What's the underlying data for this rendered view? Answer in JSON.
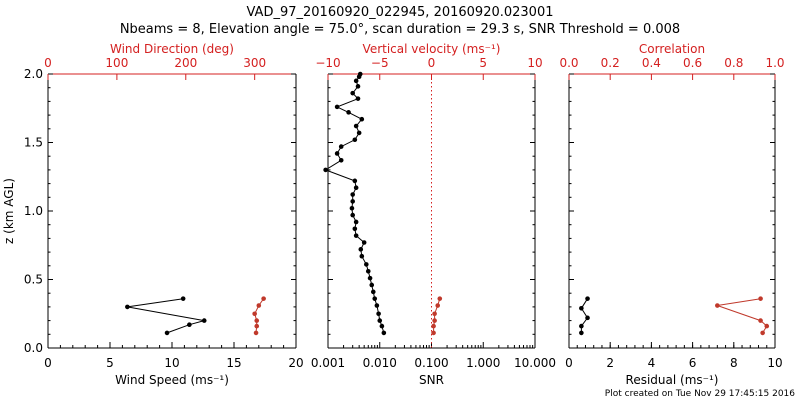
{
  "title_line1": "VAD_97_20160920_022945, 20160920.023001",
  "title_line2": "Nbeams = 8, Elevation angle = 75.0°, scan duration = 29.3 s, SNR Threshold = 0.008",
  "footer": "Plot created on Tue Nov 29 17:45:15 2016",
  "colors": {
    "black": "#000000",
    "red": "#d42020",
    "dark_red": "#c0392b"
  },
  "chart_data": [
    {
      "type": "line",
      "panel": "wind",
      "ylabel": "z (km AGL)",
      "ylim": [
        0,
        2.0
      ],
      "y_ticks": [
        "0.0",
        "0.5",
        "1.0",
        "1.5",
        "2.0"
      ],
      "xlabel": "Wind Speed (ms⁻¹)",
      "xlim": [
        0,
        20
      ],
      "x_ticks": [
        "0",
        "5",
        "10",
        "15",
        "20"
      ],
      "top_xlabel": "Wind Direction (deg)",
      "top_xlim": [
        0,
        360
      ],
      "top_x_ticks": [
        "0",
        "100",
        "200",
        "300"
      ],
      "series": [
        {
          "color": "#000000",
          "x": [
            9.6,
            11.4,
            12.6,
            6.4,
            10.9
          ],
          "y": [
            0.11,
            0.17,
            0.2,
            0.3,
            0.36
          ]
        },
        {
          "color": "#c0392b",
          "axis": "top",
          "x": [
            302,
            303,
            303,
            300,
            306,
            313
          ],
          "y": [
            0.11,
            0.16,
            0.2,
            0.25,
            0.31,
            0.36
          ]
        }
      ]
    },
    {
      "type": "line",
      "panel": "snr",
      "xlabel": "SNR",
      "xscale": "log",
      "xlim": [
        0.001,
        10
      ],
      "x_ticks": [
        "0.001",
        "0.010",
        "0.100",
        "1.000",
        "10.000"
      ],
      "top_xlabel": "Vertical velocity (ms⁻¹)",
      "top_xlim": [
        -10,
        10
      ],
      "top_x_ticks": [
        "−10",
        "−5",
        "0",
        "5",
        "10"
      ],
      "series": [
        {
          "color": "#000000",
          "x": [
            0.012,
            0.011,
            0.01,
            0.0095,
            0.0088,
            0.008,
            0.0075,
            0.007,
            0.0065,
            0.006,
            0.0055,
            0.0045,
            0.0043,
            0.005,
            0.0035,
            0.0033,
            0.0035,
            0.003,
            0.0029,
            0.003,
            0.003,
            0.0035,
            0.0033,
            0.0009,
            0.0018,
            0.0015,
            0.0018,
            0.0033,
            0.004,
            0.0035,
            0.0045,
            0.0025,
            0.0015,
            0.0038,
            0.003,
            0.0038,
            0.0035,
            0.004,
            0.0042
          ],
          "y": [
            0.11,
            0.16,
            0.2,
            0.25,
            0.31,
            0.36,
            0.41,
            0.46,
            0.51,
            0.56,
            0.61,
            0.67,
            0.72,
            0.77,
            0.82,
            0.87,
            0.92,
            0.97,
            1.02,
            1.07,
            1.12,
            1.17,
            1.22,
            1.3,
            1.37,
            1.42,
            1.47,
            1.52,
            1.57,
            1.62,
            1.67,
            1.72,
            1.76,
            1.82,
            1.86,
            1.91,
            1.95,
            1.98,
            2.0
          ]
        },
        {
          "color": "#c0392b",
          "axis": "top",
          "x": [
            0.2,
            0.2,
            0.3,
            0.3,
            0.6,
            0.8
          ],
          "y": [
            0.11,
            0.16,
            0.2,
            0.25,
            0.31,
            0.36
          ]
        }
      ],
      "reference_line": {
        "axis": "top",
        "x": 0,
        "style": "dotted",
        "color": "#d42020"
      }
    },
    {
      "type": "line",
      "panel": "residual",
      "xlabel": "Residual (ms⁻¹)",
      "xlim": [
        0,
        10
      ],
      "x_ticks": [
        "0",
        "2",
        "4",
        "6",
        "8",
        "10"
      ],
      "top_xlabel": "Correlation",
      "top_xlim": [
        0,
        1.0
      ],
      "top_x_ticks": [
        "0.0",
        "0.2",
        "0.4",
        "0.6",
        "0.8",
        "1.0"
      ],
      "series": [
        {
          "color": "#000000",
          "x": [
            0.6,
            0.6,
            0.9,
            0.6,
            0.9
          ],
          "y": [
            0.11,
            0.16,
            0.22,
            0.29,
            0.36
          ]
        },
        {
          "color": "#c0392b",
          "axis": "top",
          "x": [
            0.94,
            0.96,
            0.93,
            0.72,
            0.93
          ],
          "y": [
            0.11,
            0.16,
            0.2,
            0.31,
            0.36
          ]
        }
      ]
    }
  ]
}
